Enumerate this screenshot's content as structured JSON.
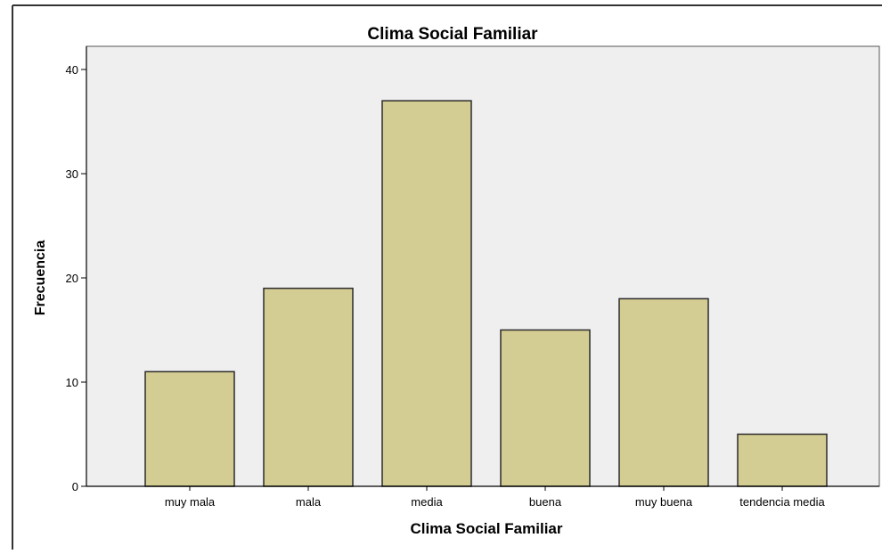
{
  "chart_data": {
    "type": "bar",
    "title": "Clima Social Familiar",
    "xlabel": "Clima Social Familiar",
    "ylabel": "Frecuencia",
    "categories": [
      "muy mala",
      "mala",
      "media",
      "buena",
      "muy buena",
      "tendencia media"
    ],
    "values": [
      11,
      19,
      37,
      15,
      18,
      5
    ],
    "ylim": [
      0,
      40
    ],
    "yticks": [
      "0",
      "10",
      "20",
      "30",
      "40"
    ],
    "grid": false,
    "legend": "none"
  },
  "colors": {
    "bar_fill": "#d4cd93",
    "bar_stroke": "#2b2b2b",
    "plot_background": "#efefef",
    "text": "#000000"
  }
}
